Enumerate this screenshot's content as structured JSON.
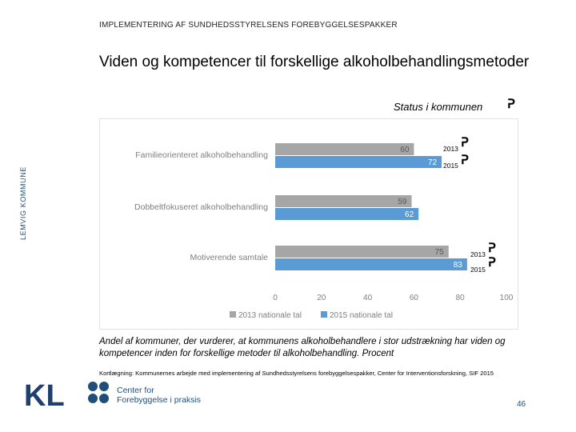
{
  "header": "IMPLEMENTERING AF SUNDHEDSSTYRELSENS FOREBYGGELSESPAKKER",
  "title": "Viden og kompetencer til forskellige alkoholbehandlingsmetoder",
  "status_label": "Status i kommunen",
  "side_label": "LEMVIG KOMMUNE",
  "flag_glyph": "ᕈ",
  "annotations": {
    "y2013": "2013",
    "y2015": "2015"
  },
  "caption": "Andel af kommuner, der vurderer, at kommunens alkoholbehandlere i stor udstrækning har viden og kompetencer inden for forskellige metoder til alkoholbehandling. Procent",
  "source": "Kortlægning: Kommunernes arbejde med implementering af Sundhedsstyrelsens forebyggelsespakker, Center for Interventionsforskning, SIF 2015",
  "page_number": "46",
  "logos": {
    "kl": "KL",
    "cfp_line1": "Center for",
    "cfp_line2": "Forebyggelse i praksis"
  },
  "chart_data": {
    "type": "bar",
    "orientation": "horizontal",
    "categories": [
      "Familieorienteret alkoholbehandling",
      "Dobbeltfokuseret alkoholbehandling",
      "Motiverende samtale"
    ],
    "series": [
      {
        "name": "2013 nationale tal",
        "values": [
          60,
          59,
          75
        ],
        "color": "#a6a6a6"
      },
      {
        "name": "2015 nationale tal",
        "values": [
          72,
          62,
          83
        ],
        "color": "#5b9bd5"
      }
    ],
    "xlim": [
      0,
      100
    ],
    "xticks": [
      "0",
      "20",
      "40",
      "60",
      "80",
      "100"
    ],
    "grid": false,
    "legend": "bottom"
  }
}
